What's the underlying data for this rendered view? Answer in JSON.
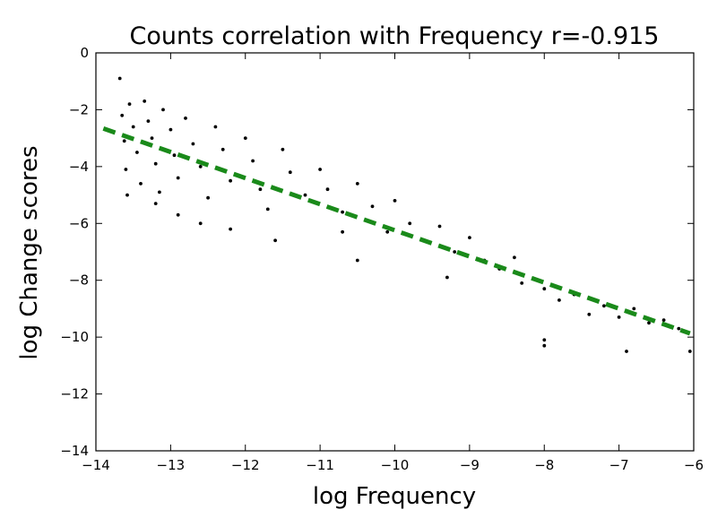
{
  "chart_data": {
    "type": "scatter",
    "title": "Counts correlation with Frequency r=-0.915",
    "xlabel": "log Frequency",
    "ylabel": "log Change scores",
    "xlim": [
      -14,
      -6
    ],
    "ylim": [
      -14,
      0
    ],
    "xticks": [
      -14,
      -13,
      -12,
      -11,
      -10,
      -9,
      -8,
      -7,
      -6
    ],
    "yticks": [
      0,
      -2,
      -4,
      -6,
      -8,
      -10,
      -12,
      -14
    ],
    "xtick_labels": [
      "−14",
      "−13",
      "−12",
      "−11",
      "−10",
      "−9",
      "−8",
      "−7",
      "−6"
    ],
    "ytick_labels": [
      "0",
      "−2",
      "−4",
      "−6",
      "−8",
      "−10",
      "−12",
      "−14"
    ],
    "grid": false,
    "series": [
      {
        "kind": "points",
        "color": "#000000",
        "points": [
          [
            -13.68,
            -0.9
          ],
          [
            -13.65,
            -2.2
          ],
          [
            -13.62,
            -3.1
          ],
          [
            -13.6,
            -4.1
          ],
          [
            -13.58,
            -5.0
          ],
          [
            -13.55,
            -1.8
          ],
          [
            -13.5,
            -2.6
          ],
          [
            -13.45,
            -3.5
          ],
          [
            -13.4,
            -4.6
          ],
          [
            -13.35,
            -1.7
          ],
          [
            -13.3,
            -2.4
          ],
          [
            -13.25,
            -3.0
          ],
          [
            -13.2,
            -3.9
          ],
          [
            -13.15,
            -4.9
          ],
          [
            -13.1,
            -2.0
          ],
          [
            -13.0,
            -2.7
          ],
          [
            -12.95,
            -3.6
          ],
          [
            -12.9,
            -4.4
          ],
          [
            -12.8,
            -2.3
          ],
          [
            -12.7,
            -3.2
          ],
          [
            -12.6,
            -4.0
          ],
          [
            -12.5,
            -5.1
          ],
          [
            -12.4,
            -2.6
          ],
          [
            -12.3,
            -3.4
          ],
          [
            -12.2,
            -4.5
          ],
          [
            -12.0,
            -3.0
          ],
          [
            -11.9,
            -3.8
          ],
          [
            -11.8,
            -4.8
          ],
          [
            -11.7,
            -5.5
          ],
          [
            -11.5,
            -3.4
          ],
          [
            -11.4,
            -4.2
          ],
          [
            -11.2,
            -5.0
          ],
          [
            -11.0,
            -4.1
          ],
          [
            -10.9,
            -4.8
          ],
          [
            -10.7,
            -5.6
          ],
          [
            -10.5,
            -4.6
          ],
          [
            -10.3,
            -5.4
          ],
          [
            -10.1,
            -6.3
          ],
          [
            -10.0,
            -5.2
          ],
          [
            -9.8,
            -6.0
          ],
          [
            -9.6,
            -6.6
          ],
          [
            -9.4,
            -6.1
          ],
          [
            -9.2,
            -7.0
          ],
          [
            -9.0,
            -6.5
          ],
          [
            -8.8,
            -7.3
          ],
          [
            -8.6,
            -7.6
          ],
          [
            -8.4,
            -7.2
          ],
          [
            -8.3,
            -8.1
          ],
          [
            -8.0,
            -8.3
          ],
          [
            -7.8,
            -8.7
          ],
          [
            -7.6,
            -8.5
          ],
          [
            -7.4,
            -9.2
          ],
          [
            -7.2,
            -8.9
          ],
          [
            -7.0,
            -9.3
          ],
          [
            -6.9,
            -10.5
          ],
          [
            -6.8,
            -9.0
          ],
          [
            -6.6,
            -9.5
          ],
          [
            -6.4,
            -9.4
          ],
          [
            -6.2,
            -9.7
          ],
          [
            -6.05,
            -10.5
          ],
          [
            -8.0,
            -10.1
          ],
          [
            -8.0,
            -10.3
          ],
          [
            -12.6,
            -6.0
          ],
          [
            -12.9,
            -5.7
          ],
          [
            -10.5,
            -7.3
          ],
          [
            -11.6,
            -6.6
          ],
          [
            -10.7,
            -6.3
          ],
          [
            -9.3,
            -7.9
          ],
          [
            -13.2,
            -5.3
          ],
          [
            -12.2,
            -6.2
          ]
        ]
      },
      {
        "kind": "fit",
        "name": "",
        "style": "dashed",
        "color": "#1a8a1a",
        "x": [
          -13.9,
          -6.05
        ],
        "y": [
          -2.66,
          -9.87
        ]
      }
    ]
  }
}
